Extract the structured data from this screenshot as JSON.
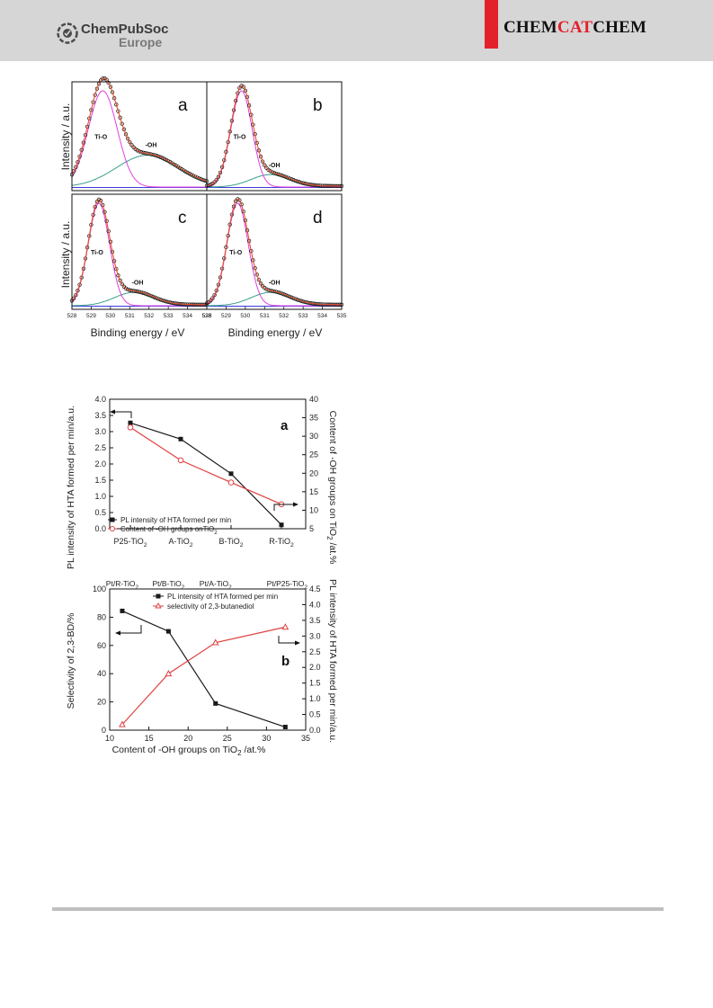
{
  "header": {
    "logo_line1": "ChemPubSoc",
    "logo_line2": "Europe",
    "journal_a": "CHEM",
    "journal_b": "CAT",
    "journal_c": "CHEM"
  },
  "xps_figure": {
    "y_label": "Intensity / a.u.",
    "x_label": "Binding energy / eV",
    "x_ticks": [
      "528",
      "529",
      "530",
      "531",
      "532",
      "533",
      "534",
      "535"
    ],
    "peak_labels": {
      "tio": "Ti-O",
      "oh": "-OH"
    },
    "panels": [
      {
        "letter": "a",
        "tio_center": 529.6,
        "tio_width": 0.75,
        "oh_center": 531.9,
        "oh_width": 1.6,
        "oh_height": 0.33
      },
      {
        "letter": "b",
        "tio_center": 529.8,
        "tio_width": 0.55,
        "oh_center": 531.3,
        "oh_width": 1.0,
        "oh_height": 0.13
      },
      {
        "letter": "c",
        "tio_center": 529.4,
        "tio_width": 0.55,
        "oh_center": 531.2,
        "oh_width": 1.0,
        "oh_height": 0.13
      },
      {
        "letter": "d",
        "tio_center": 529.6,
        "tio_width": 0.55,
        "oh_center": 531.3,
        "oh_width": 1.0,
        "oh_height": 0.13
      }
    ]
  },
  "chart_data": [
    {
      "type": "line",
      "panel_letter": "a",
      "categories": [
        "P25-TiO2",
        "A-TiO2",
        "B-TiO2",
        "R-TiO2"
      ],
      "category_labels": [
        {
          "main": "P25-TiO",
          "sub": "2"
        },
        {
          "main": "A-TiO",
          "sub": "2"
        },
        {
          "main": "B-TiO",
          "sub": "2"
        },
        {
          "main": "R-TiO",
          "sub": "2"
        }
      ],
      "series": [
        {
          "name": "PL intensity of HTA formed per min",
          "axis": "left",
          "values": [
            3.27,
            2.77,
            1.7,
            0.12
          ],
          "color": "#1a1a1a",
          "marker": "square"
        },
        {
          "name": "Content of -OH groups onTiO2",
          "axis": "right",
          "values": [
            32.4,
            23.5,
            17.5,
            11.6
          ],
          "color": "#e04040",
          "marker": "circle"
        }
      ],
      "ylabel_left": "PL intensity of HTA formed per min/a.u.",
      "ylabel_right": "Content of -OH groups on TiO2 /at.%",
      "ylim_left": [
        0,
        4
      ],
      "ylim_right": [
        5,
        40
      ],
      "yticks_left": [
        "0.0",
        "0.5",
        "1.0",
        "1.5",
        "2.0",
        "2.5",
        "3.0",
        "3.5",
        "4.0"
      ],
      "yticks_right": [
        "5",
        "10",
        "15",
        "20",
        "25",
        "30",
        "35",
        "40"
      ],
      "legend": [
        "PL intensity of HTA formed per min",
        "Content of -OH groups onTiO"
      ]
    },
    {
      "type": "line",
      "panel_letter": "b",
      "top_labels": [
        {
          "main": "Pt/R-TiO",
          "sub": "2"
        },
        {
          "main": "Pt/B-TiO",
          "sub": "2"
        },
        {
          "main": "Pt/A-TiO",
          "sub": "2"
        },
        {
          "main": "Pt/P25-TiO",
          "sub": "2"
        }
      ],
      "series": [
        {
          "name": "PL intensity of HTA formed per min",
          "axis": "right",
          "x": [
            11.6,
            17.5,
            23.5,
            32.4
          ],
          "values": [
            3.8,
            3.15,
            0.85,
            0.1
          ],
          "color": "#1a1a1a",
          "marker": "square"
        },
        {
          "name": "selectivity of 2,3-butanediol",
          "axis": "left",
          "x": [
            11.6,
            17.5,
            23.5,
            32.4
          ],
          "values": [
            4,
            40,
            62,
            73
          ],
          "color": "#e04040",
          "marker": "triangle"
        }
      ],
      "xlabel": "Content of -OH groups on TiO2 /at.%",
      "ylabel_left": "Selectivity of 2,3-BD/%",
      "ylabel_right": "PL intensity of HTA formed per min/a.u.",
      "xlim": [
        10,
        35
      ],
      "xticks": [
        "10",
        "15",
        "20",
        "25",
        "30",
        "35"
      ],
      "ylim_left": [
        0,
        100
      ],
      "yticks_left": [
        "0",
        "20",
        "40",
        "60",
        "80",
        "100"
      ],
      "ylim_right": [
        0,
        4.5
      ],
      "yticks_right": [
        "0.0",
        "0.5",
        "1.0",
        "1.5",
        "2.0",
        "2.5",
        "3.0",
        "3.5",
        "4.0",
        "4.5"
      ],
      "legend": [
        "PL intensity of HTA formed per min",
        "selectivity of 2,3-butanediol"
      ]
    }
  ]
}
